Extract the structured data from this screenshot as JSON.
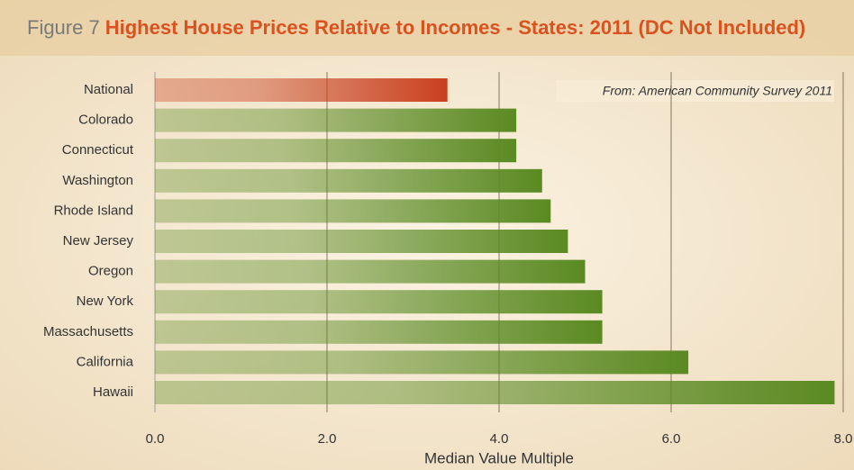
{
  "chart_data": {
    "type": "barh",
    "figure_label": "Figure 7",
    "title": "Highest House Prices Relative to Incomes - States: 2011 (DC Not Included)",
    "annotation": "From: American Community Survey 2011",
    "x_label": "Median Value Multiple",
    "categories": [
      "National",
      "Colorado",
      "Connecticut",
      "Washington",
      "Rhode Island",
      "New Jersey",
      "Oregon",
      "New York",
      "Massachusetts",
      "California",
      "Hawaii"
    ],
    "values": [
      3.4,
      4.2,
      4.2,
      4.5,
      4.6,
      4.8,
      5.0,
      5.2,
      5.2,
      6.2,
      7.9
    ],
    "colors": [
      "#c9401f",
      "#5a8a22",
      "#5a8a22",
      "#5a8a22",
      "#5a8a22",
      "#5a8a22",
      "#5a8a22",
      "#5a8a22",
      "#5a8a22",
      "#5a8a22",
      "#5a8a22"
    ],
    "xlim": [
      0,
      8
    ],
    "xticks": [
      {
        "value": 0,
        "label": "0.0"
      },
      {
        "value": 2,
        "label": "2.0"
      },
      {
        "value": 4,
        "label": "4.0"
      },
      {
        "value": 6,
        "label": "6.0"
      },
      {
        "value": 8,
        "label": "8.0"
      }
    ],
    "grid": true
  }
}
